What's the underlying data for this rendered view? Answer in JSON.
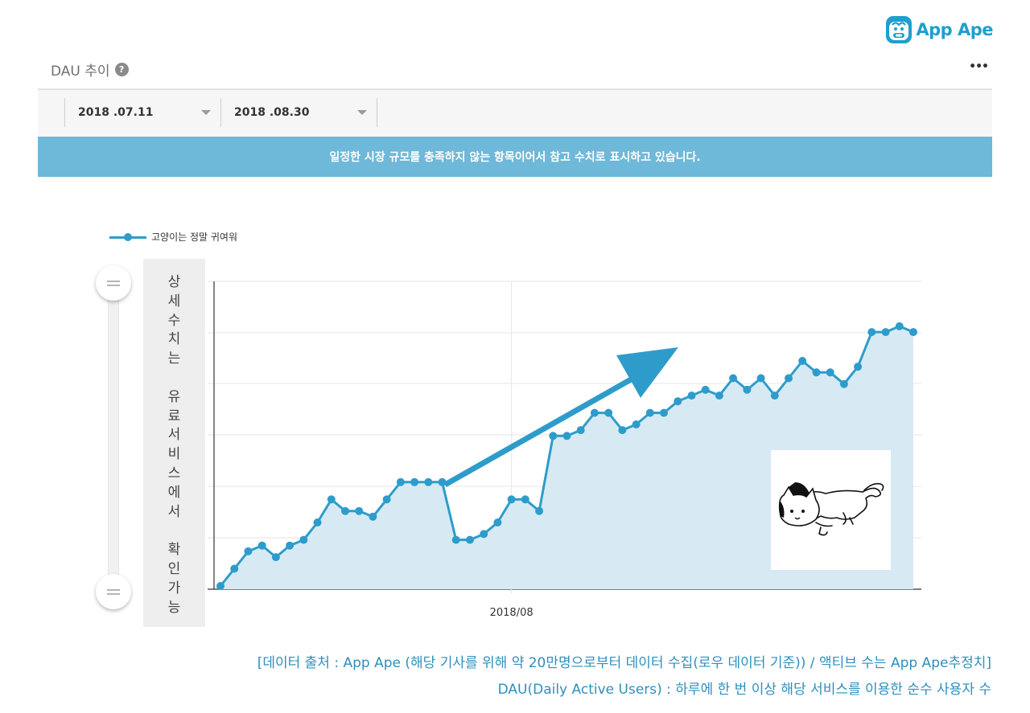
{
  "brand": {
    "name": "App Ape",
    "color": "#1e9fcf"
  },
  "panel": {
    "title": "DAU 추이",
    "help_icon": "question-circle-icon",
    "more_icon": "more-dots-icon"
  },
  "date_range": {
    "start": "2018 .07.11",
    "end": "2018 .08.30",
    "dropdown_icon": "caret-down-icon"
  },
  "notice": {
    "text": "일정한 시장 규모를 충족하지 않는 항목이어서 참고 수치로 표시하고 있습니다.",
    "background": "#6eb8d9"
  },
  "side_note": [
    "상",
    "세",
    "수",
    "치",
    "는",
    "",
    "유",
    "료",
    "서",
    "비",
    "스",
    "에",
    "서",
    "",
    "확",
    "인",
    "가",
    "능"
  ],
  "chart_data": {
    "type": "area",
    "series": [
      {
        "name": "고양이는 정말 귀여워",
        "color": "#2e9ccb",
        "fill": "#d7eaf4",
        "x_start": "2018-07-11",
        "x_end": "2018-08-30",
        "values": [
          0,
          3,
          6,
          7,
          5,
          7,
          8,
          11,
          15,
          13,
          13,
          12,
          15,
          18,
          18,
          18,
          18,
          8,
          8,
          9,
          11,
          15,
          15,
          13,
          26,
          26,
          27,
          30,
          30,
          27,
          28,
          30,
          30,
          32,
          33,
          34,
          33,
          36,
          34,
          36,
          33,
          36,
          39,
          37,
          37,
          35,
          38,
          44,
          44,
          45,
          44
        ]
      }
    ],
    "x_tick_labels": [
      "2018/08"
    ],
    "y_tick_labels": [],
    "ylim": [
      0,
      50
    ],
    "grid": true,
    "legend_position": "top-left",
    "annotation": "arrow-up-right"
  },
  "source": {
    "line1": "[데이터 출처 : App Ape (해당 기사를 위해 약 20만명으로부터 데이터 수집(로우 데이터 기준)) / 액티브 수는 App Ape추정치]",
    "line2": "DAU(Daily Active Users) : 하루에 한 번 이상 해당 서비스를 이용한 순수 사용자 수",
    "color": "#2e8fbd"
  }
}
